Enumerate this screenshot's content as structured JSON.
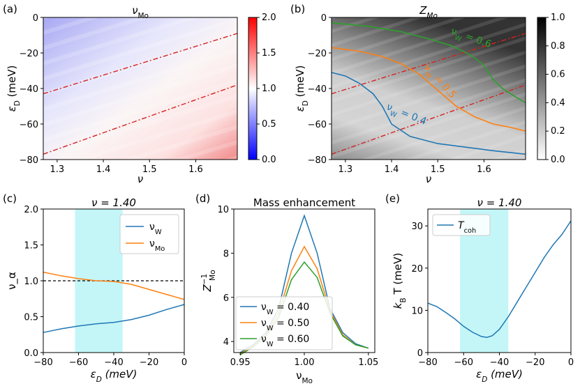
{
  "chart_data": [
    {
      "panel": "(a)",
      "type": "heatmap",
      "title": "ν_Mo",
      "xlabel": "ν",
      "ylabel": "ε_D (meV)",
      "xlim": [
        1.27,
        1.69
      ],
      "ylim": [
        -80,
        0
      ],
      "xticks": [
        "1.3",
        "1.4",
        "1.5",
        "1.6"
      ],
      "yticks": [
        "0",
        "−20",
        "−40",
        "−60",
        "−80"
      ],
      "colorbar": {
        "range": [
          0.0,
          2.0
        ],
        "ticks": [
          "2.0",
          "1.5",
          "1.0",
          "0.5",
          "0.0"
        ],
        "colormap": "bwr"
      },
      "dashdot_lines": [
        {
          "x": [
            1.27,
            1.69
          ],
          "y": [
            -43,
            -9
          ]
        },
        {
          "x": [
            1.27,
            1.69
          ],
          "y": [
            -77,
            -38
          ]
        }
      ]
    },
    {
      "panel": "(b)",
      "type": "heatmap",
      "title": "Z_Mo",
      "xlabel": "ν",
      "ylabel": "ε_D (meV)",
      "xlim": [
        1.27,
        1.69
      ],
      "ylim": [
        -80,
        0
      ],
      "xticks": [
        "1.3",
        "1.4",
        "1.5",
        "1.6"
      ],
      "yticks": [
        "0",
        "−20",
        "−40",
        "−60",
        "−80"
      ],
      "colorbar": {
        "range": [
          0.0,
          1.0
        ],
        "ticks": [
          "1.0",
          "0.8",
          "0.6",
          "0.4",
          "0.2",
          "0.0"
        ],
        "colormap": "gray_r"
      },
      "contours": [
        {
          "label": "ν_W = 0.4",
          "color": "#1f77b4",
          "x": [
            1.27,
            1.3,
            1.33,
            1.36,
            1.38,
            1.4,
            1.44,
            1.5,
            1.56,
            1.62,
            1.69
          ],
          "y": [
            -31,
            -33,
            -37,
            -43,
            -50,
            -60,
            -67,
            -71,
            -73,
            -75,
            -77
          ]
        },
        {
          "label": "ν_W = 0.5",
          "color": "#ff7f0e",
          "x": [
            1.27,
            1.33,
            1.38,
            1.42,
            1.46,
            1.5,
            1.54,
            1.58,
            1.62,
            1.66,
            1.69
          ],
          "y": [
            -17,
            -19,
            -22,
            -26,
            -32,
            -41,
            -50,
            -56,
            -60,
            -62,
            -64
          ]
        },
        {
          "label": "ν_W = 0.6",
          "color": "#2ca02c",
          "x": [
            1.27,
            1.35,
            1.42,
            1.48,
            1.53,
            1.57,
            1.6,
            1.62,
            1.64,
            1.67,
            1.69
          ],
          "y": [
            -3,
            -5,
            -8,
            -12,
            -16,
            -21,
            -27,
            -35,
            -40,
            -45,
            -48
          ]
        }
      ],
      "dashdot_lines": [
        {
          "x": [
            1.27,
            1.69
          ],
          "y": [
            -43,
            -9
          ]
        },
        {
          "x": [
            1.27,
            1.69
          ],
          "y": [
            -77,
            -38
          ]
        }
      ]
    },
    {
      "panel": "(c)",
      "type": "line",
      "title": "ν = 1.40",
      "xlabel": "ε_D (meV)",
      "ylabel": "ν_α",
      "xlim": [
        -80,
        0
      ],
      "ylim": [
        0.0,
        2.0
      ],
      "xticks": [
        "−80",
        "−60",
        "−40",
        "−20",
        "0"
      ],
      "yticks": [
        "0.0",
        "0.5",
        "1.0",
        "1.5",
        "2.0"
      ],
      "shaded_region": [
        -62,
        -35
      ],
      "reference_line": 1.0,
      "series": [
        {
          "name": "ν_W",
          "color": "#1f77b4",
          "x": [
            -80,
            -70,
            -60,
            -50,
            -40,
            -30,
            -20,
            -10,
            0
          ],
          "y": [
            0.28,
            0.33,
            0.37,
            0.4,
            0.42,
            0.46,
            0.52,
            0.6,
            0.67
          ]
        },
        {
          "name": "ν_Mo",
          "color": "#ff7f0e",
          "x": [
            -80,
            -70,
            -60,
            -50,
            -40,
            -30,
            -20,
            -10,
            0
          ],
          "y": [
            1.12,
            1.07,
            1.03,
            1.0,
            0.99,
            0.95,
            0.88,
            0.81,
            0.74
          ]
        }
      ],
      "legend": [
        "ν_W",
        "ν_Mo"
      ]
    },
    {
      "panel": "(d)",
      "type": "line",
      "title": "Mass enhancement",
      "xlabel": "ν_Mo",
      "ylabel": "Z_Mo^−1",
      "xlim": [
        0.945,
        1.055
      ],
      "ylim": [
        3.5,
        10
      ],
      "xticks": [
        "0.95",
        "1.00",
        "1.05"
      ],
      "yticks": [
        "4",
        "6",
        "8",
        "10"
      ],
      "series": [
        {
          "name": "ν_W = 0.40",
          "color": "#1f77b4",
          "x": [
            0.95,
            0.96,
            0.97,
            0.98,
            0.99,
            1.0,
            1.01,
            1.02,
            1.03,
            1.04,
            1.05
          ],
          "y": [
            3.5,
            3.85,
            4.4,
            5.5,
            8.0,
            9.7,
            8.0,
            5.5,
            4.4,
            3.9,
            3.7
          ]
        },
        {
          "name": "ν_W = 0.50",
          "color": "#ff7f0e",
          "x": [
            0.95,
            0.96,
            0.97,
            0.98,
            0.99,
            1.0,
            1.01,
            1.02,
            1.03,
            1.04,
            1.05
          ],
          "y": [
            3.45,
            3.8,
            4.3,
            5.3,
            7.2,
            8.3,
            7.3,
            5.4,
            4.3,
            3.85,
            3.7
          ]
        },
        {
          "name": "ν_W = 0.60",
          "color": "#2ca02c",
          "x": [
            0.95,
            0.96,
            0.97,
            0.98,
            0.99,
            1.0,
            1.01,
            1.02,
            1.03,
            1.04,
            1.05
          ],
          "y": [
            3.4,
            3.75,
            4.25,
            5.1,
            6.8,
            7.6,
            6.9,
            5.3,
            4.25,
            3.85,
            3.7
          ]
        }
      ],
      "legend": [
        "ν_W = 0.40",
        "ν_W = 0.50",
        "ν_W = 0.60"
      ]
    },
    {
      "panel": "(e)",
      "type": "line",
      "title": "ν = 1.40",
      "xlabel": "ε_D (meV)",
      "ylabel": "k_B T (meV)",
      "xlim": [
        -80,
        0
      ],
      "ylim": [
        0,
        34
      ],
      "xticks": [
        "−80",
        "−60",
        "−40",
        "−20",
        "0"
      ],
      "yticks": [
        "0",
        "10",
        "20",
        "30"
      ],
      "shaded_region": [
        -62,
        -35
      ],
      "series": [
        {
          "name": "T_coh",
          "color": "#1f77b4",
          "x": [
            -80,
            -75,
            -70,
            -65,
            -60,
            -55,
            -50,
            -47,
            -44,
            -40,
            -35,
            -30,
            -25,
            -20,
            -15,
            -10,
            -5,
            0
          ],
          "y": [
            11.7,
            10.9,
            9.5,
            8.0,
            6.2,
            4.8,
            3.8,
            3.6,
            4.0,
            5.5,
            8.5,
            12.0,
            15.5,
            19.0,
            22.5,
            25.5,
            28.0,
            31.2
          ]
        }
      ],
      "legend": [
        "T_coh"
      ]
    }
  ]
}
